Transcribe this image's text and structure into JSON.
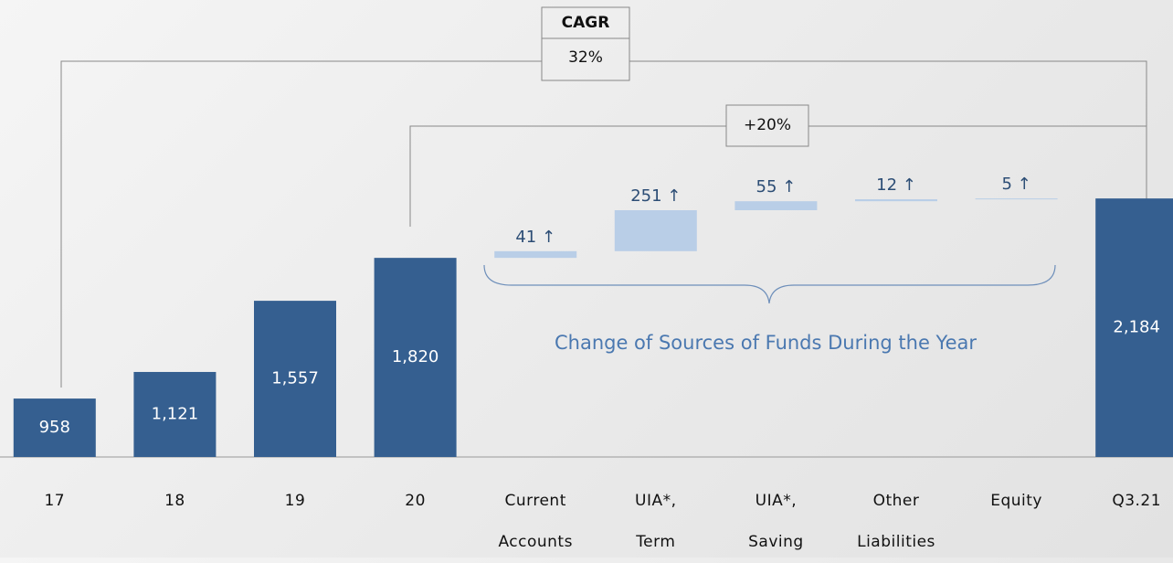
{
  "chart_data": {
    "type": "waterfall",
    "categories": [
      "17",
      "18",
      "19",
      "20",
      "Current Accounts",
      "UIA*, Term",
      "UIA*, Saving",
      "Other Liabilities",
      "Equity",
      "Q3.21"
    ],
    "values": [
      958,
      1121,
      1557,
      1820,
      41,
      251,
      55,
      12,
      5,
      2184
    ],
    "value_labels": [
      "958",
      "1,121",
      "1,557",
      "1,820",
      "41 ↑",
      "251 ↑",
      "55 ↑",
      "12 ↑",
      "5 ↑",
      "2,184"
    ],
    "measures": [
      "total",
      "total",
      "total",
      "total",
      "relative",
      "relative",
      "relative",
      "relative",
      "relative",
      "total"
    ],
    "color": "#355f90",
    "increment_color": "#b9cee7",
    "ylim": [
      600,
      3400
    ],
    "annotations": {
      "cagr_title": "CAGR",
      "cagr": "32%",
      "growth": "+20%",
      "brace_label": "Change of Sources of Funds During the Year"
    }
  }
}
